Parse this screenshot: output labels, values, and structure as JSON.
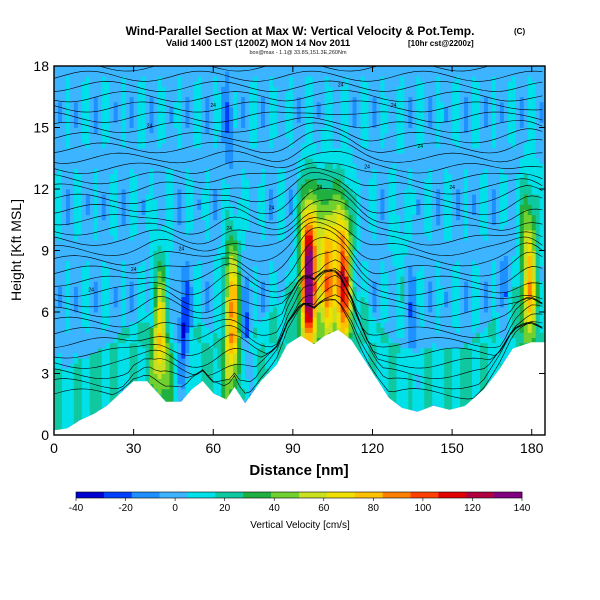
{
  "chart_data": {
    "type": "heatmap",
    "title": "Wind-Parallel Section at Max W: Vertical Velocity & Pot.Temp.",
    "title_mark": "(C)",
    "subtitle": "Valid 1400 LST (1200Z) MON 14 Nov 2011",
    "subtitle_extra": "[10hr cst@2200z]",
    "subsubtitle": "box@max - 1.1@ 33.8S,151.3E,260Nm",
    "xlabel": "Distance [nm]",
    "ylabel": "Height [Kft MSL]",
    "xlim": [
      0,
      185
    ],
    "ylim": [
      0,
      18
    ],
    "xticks": [
      0,
      30,
      60,
      90,
      120,
      150,
      180
    ],
    "yticks": [
      0,
      3,
      6,
      9,
      12,
      15,
      18
    ],
    "colorbar": {
      "label": "Vertical Velocity [cm/s]",
      "ticks": [
        -40,
        -20,
        0,
        20,
        40,
        60,
        80,
        100,
        120,
        140
      ],
      "range": [
        -40,
        140
      ],
      "colors": [
        "#0000d0",
        "#0040ff",
        "#1e90ff",
        "#3cb4ff",
        "#00e0e8",
        "#10c8a0",
        "#20b040",
        "#70d030",
        "#c8e020",
        "#f0e000",
        "#ffc000",
        "#ff8000",
        "#ff4000",
        "#e00000",
        "#b00040",
        "#800080"
      ]
    },
    "terrain_kft": [
      [
        0,
        0.2
      ],
      [
        5,
        0.3
      ],
      [
        10,
        0.7
      ],
      [
        15,
        1.0
      ],
      [
        20,
        1.4
      ],
      [
        25,
        2.0
      ],
      [
        30,
        2.6
      ],
      [
        35,
        2.6
      ],
      [
        42,
        1.6
      ],
      [
        48,
        1.6
      ],
      [
        52,
        2.2
      ],
      [
        56,
        2.6
      ],
      [
        60,
        2.0
      ],
      [
        65,
        1.7
      ],
      [
        68,
        2.3
      ],
      [
        72,
        1.5
      ],
      [
        78,
        2.6
      ],
      [
        84,
        3.4
      ],
      [
        88,
        4.4
      ],
      [
        93,
        4.8
      ],
      [
        98,
        4.4
      ],
      [
        102,
        4.8
      ],
      [
        107,
        5.1
      ],
      [
        112,
        4.6
      ],
      [
        117,
        3.6
      ],
      [
        122,
        2.6
      ],
      [
        126,
        1.8
      ],
      [
        131,
        1.3
      ],
      [
        137,
        1.1
      ],
      [
        143,
        1.4
      ],
      [
        149,
        1.2
      ],
      [
        155,
        1.4
      ],
      [
        162,
        2.2
      ],
      [
        168,
        3.2
      ],
      [
        173,
        4.2
      ],
      [
        180,
        4.5
      ],
      [
        185,
        4.5
      ]
    ],
    "updraft_cores": [
      {
        "x": 96,
        "y": 8,
        "w": 140
      },
      {
        "x": 103,
        "y": 8.5,
        "w": 80
      },
      {
        "x": 109,
        "y": 8,
        "w": 100
      },
      {
        "x": 67,
        "y": 6,
        "w": 80
      },
      {
        "x": 40,
        "y": 5,
        "w": 60
      },
      {
        "x": 179,
        "y": 8.2,
        "w": 70
      },
      {
        "x": 130,
        "y": 9,
        "w": 10
      }
    ],
    "downdraft_cores": [
      {
        "x": 49,
        "y": 4.5,
        "w": -35
      },
      {
        "x": 72,
        "y": 4.5,
        "w": -25
      },
      {
        "x": 135,
        "y": 5,
        "w": -15
      },
      {
        "x": 170,
        "y": 6,
        "w": -15
      },
      {
        "x": 66,
        "y": 15,
        "w": -15
      }
    ],
    "contour_label": "24"
  }
}
